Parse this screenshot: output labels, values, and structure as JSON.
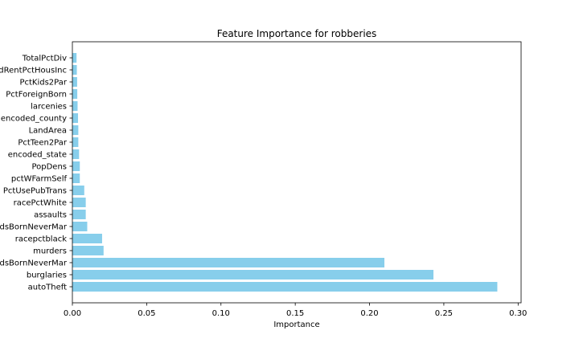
{
  "chart_data": {
    "type": "bar",
    "orientation": "horizontal",
    "title": "Feature Importance for robberies",
    "xlabel": "Importance",
    "ylabel": "",
    "xlim": [
      0,
      0.302
    ],
    "x_ticks": [
      0.0,
      0.05,
      0.1,
      0.15,
      0.2,
      0.25,
      0.3
    ],
    "x_tick_labels": [
      "0.00",
      "0.05",
      "0.10",
      "0.15",
      "0.20",
      "0.25",
      "0.30"
    ],
    "bar_color": "#87ceeb",
    "grid": false,
    "categories": [
      "autoTheft",
      "burglaries",
      "PctKidsBornNeverMar",
      "murders",
      "racepctblack",
      "PctKidsBornNeverMar",
      "assaults",
      "racePctWhite",
      "PctUsePubTrans",
      "pctWFarmSelf",
      "PopDens",
      "encoded_state",
      "PctTeen2Par",
      "LandArea",
      "encoded_county",
      "larcenies",
      "PctForeignBorn",
      "PctKids2Par",
      "MedRentPctHousInc",
      "TotalPctDiv"
    ],
    "values": [
      0.286,
      0.243,
      0.21,
      0.021,
      0.02,
      0.01,
      0.009,
      0.009,
      0.008,
      0.005,
      0.005,
      0.0045,
      0.004,
      0.004,
      0.0038,
      0.0035,
      0.0033,
      0.0032,
      0.003,
      0.0028
    ]
  }
}
